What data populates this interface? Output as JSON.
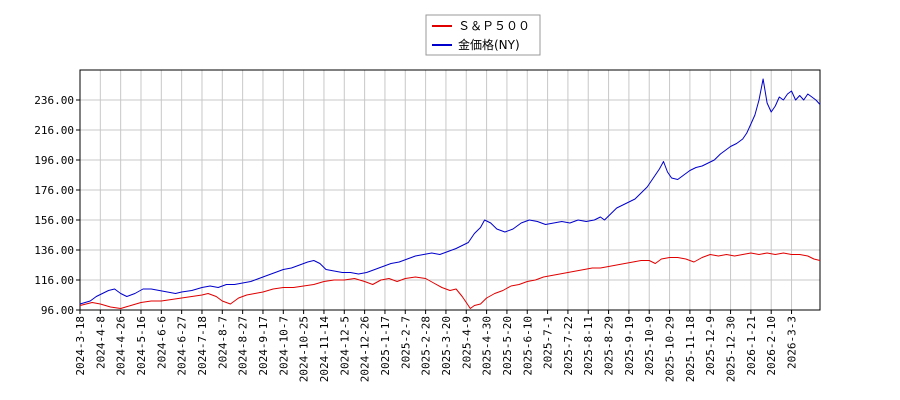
{
  "chart_data": {
    "type": "line",
    "legend_placement": "top-center",
    "grid": true,
    "ylim": [
      96,
      256
    ],
    "y_ticks": [
      96.0,
      116.0,
      136.0,
      156.0,
      176.0,
      196.0,
      216.0,
      236.0
    ],
    "y_tick_labels": [
      "96.00",
      "116.00",
      "136.00",
      "156.00",
      "176.00",
      "196.00",
      "216.00",
      "236.00"
    ],
    "x_tick_labels": [
      "2024-3-18",
      "2024-4-8",
      "2024-4-26",
      "2024-5-16",
      "2024-6-6",
      "2024-6-27",
      "2024-7-18",
      "2024-8-7",
      "2024-8-27",
      "2024-9-17",
      "2024-10-7",
      "2024-10-25",
      "2024-11-14",
      "2024-12-5",
      "2024-12-26",
      "2025-1-17",
      "2025-2-7",
      "2025-2-28",
      "2025-3-20",
      "2025-4-9",
      "2025-4-30",
      "2025-5-20",
      "2025-6-10",
      "2025-7-1",
      "2025-7-22",
      "2025-8-11",
      "2025-8-29",
      "2025-9-19",
      "2025-10-9",
      "2025-10-29",
      "2025-11-18",
      "2025-12-9",
      "2025-12-30",
      "2026-1-21",
      "2026-2-10",
      "2026-3-3"
    ],
    "x_range_tick_index": [
      0,
      36.4
    ],
    "series": [
      {
        "name": "Ｓ＆Ｐ５００",
        "color": "#e00000",
        "points": [
          [
            0,
            99
          ],
          [
            0.6,
            101
          ],
          [
            1,
            100
          ],
          [
            1.5,
            98
          ],
          [
            2,
            97
          ],
          [
            2.5,
            99
          ],
          [
            3,
            101
          ],
          [
            3.5,
            102
          ],
          [
            4,
            102
          ],
          [
            4.5,
            103
          ],
          [
            5,
            104
          ],
          [
            5.5,
            105
          ],
          [
            6,
            106
          ],
          [
            6.3,
            107
          ],
          [
            6.7,
            105
          ],
          [
            7,
            102
          ],
          [
            7.4,
            100
          ],
          [
            7.8,
            104
          ],
          [
            8.2,
            106
          ],
          [
            8.6,
            107
          ],
          [
            9,
            108
          ],
          [
            9.5,
            110
          ],
          [
            10,
            111
          ],
          [
            10.5,
            111
          ],
          [
            11,
            112
          ],
          [
            11.5,
            113
          ],
          [
            12,
            115
          ],
          [
            12.5,
            116
          ],
          [
            13,
            116
          ],
          [
            13.5,
            117
          ],
          [
            14,
            115
          ],
          [
            14.4,
            113
          ],
          [
            14.8,
            116
          ],
          [
            15.2,
            117
          ],
          [
            15.6,
            115
          ],
          [
            16,
            117
          ],
          [
            16.5,
            118
          ],
          [
            17,
            117
          ],
          [
            17.4,
            114
          ],
          [
            17.8,
            111
          ],
          [
            18.2,
            109
          ],
          [
            18.5,
            110
          ],
          [
            18.8,
            105
          ],
          [
            19,
            101
          ],
          [
            19.2,
            97
          ],
          [
            19.4,
            99
          ],
          [
            19.7,
            100
          ],
          [
            20,
            104
          ],
          [
            20.4,
            107
          ],
          [
            20.8,
            109
          ],
          [
            21.2,
            112
          ],
          [
            21.6,
            113
          ],
          [
            22,
            115
          ],
          [
            22.4,
            116
          ],
          [
            22.8,
            118
          ],
          [
            23.2,
            119
          ],
          [
            23.6,
            120
          ],
          [
            24,
            121
          ],
          [
            24.4,
            122
          ],
          [
            24.8,
            123
          ],
          [
            25.2,
            124
          ],
          [
            25.6,
            124
          ],
          [
            26,
            125
          ],
          [
            26.4,
            126
          ],
          [
            26.8,
            127
          ],
          [
            27.2,
            128
          ],
          [
            27.6,
            129
          ],
          [
            28,
            129
          ],
          [
            28.3,
            127
          ],
          [
            28.6,
            130
          ],
          [
            29,
            131
          ],
          [
            29.4,
            131
          ],
          [
            29.8,
            130
          ],
          [
            30.2,
            128
          ],
          [
            30.6,
            131
          ],
          [
            31,
            133
          ],
          [
            31.4,
            132
          ],
          [
            31.8,
            133
          ],
          [
            32.2,
            132
          ],
          [
            32.6,
            133
          ],
          [
            33,
            134
          ],
          [
            33.4,
            133
          ],
          [
            33.8,
            134
          ],
          [
            34.2,
            133
          ],
          [
            34.6,
            134
          ],
          [
            35,
            133
          ],
          [
            35.4,
            133
          ],
          [
            35.8,
            132
          ],
          [
            36.1,
            130
          ],
          [
            36.4,
            129
          ]
        ]
      },
      {
        "name": "金価格(NY)",
        "color": "#0000cc",
        "points": [
          [
            0,
            100
          ],
          [
            0.5,
            102
          ],
          [
            0.8,
            105
          ],
          [
            1.1,
            107
          ],
          [
            1.4,
            109
          ],
          [
            1.7,
            110
          ],
          [
            2,
            107
          ],
          [
            2.3,
            105
          ],
          [
            2.7,
            107
          ],
          [
            3.1,
            110
          ],
          [
            3.5,
            110
          ],
          [
            3.9,
            109
          ],
          [
            4.3,
            108
          ],
          [
            4.7,
            107
          ],
          [
            5,
            108
          ],
          [
            5.5,
            109
          ],
          [
            6,
            111
          ],
          [
            6.4,
            112
          ],
          [
            6.8,
            111
          ],
          [
            7.2,
            113
          ],
          [
            7.6,
            113
          ],
          [
            8,
            114
          ],
          [
            8.4,
            115
          ],
          [
            8.8,
            117
          ],
          [
            9.2,
            119
          ],
          [
            9.6,
            121
          ],
          [
            10,
            123
          ],
          [
            10.4,
            124
          ],
          [
            10.8,
            126
          ],
          [
            11.2,
            128
          ],
          [
            11.5,
            129
          ],
          [
            11.8,
            127
          ],
          [
            12.1,
            123
          ],
          [
            12.5,
            122
          ],
          [
            12.9,
            121
          ],
          [
            13.3,
            121
          ],
          [
            13.7,
            120
          ],
          [
            14.1,
            121
          ],
          [
            14.5,
            123
          ],
          [
            14.9,
            125
          ],
          [
            15.3,
            127
          ],
          [
            15.7,
            128
          ],
          [
            16.1,
            130
          ],
          [
            16.5,
            132
          ],
          [
            16.9,
            133
          ],
          [
            17.3,
            134
          ],
          [
            17.7,
            133
          ],
          [
            18.1,
            135
          ],
          [
            18.5,
            137
          ],
          [
            18.8,
            139
          ],
          [
            19.1,
            141
          ],
          [
            19.4,
            147
          ],
          [
            19.7,
            151
          ],
          [
            19.9,
            156
          ],
          [
            20.2,
            154
          ],
          [
            20.5,
            150
          ],
          [
            20.9,
            148
          ],
          [
            21.3,
            150
          ],
          [
            21.7,
            154
          ],
          [
            22.1,
            156
          ],
          [
            22.5,
            155
          ],
          [
            22.9,
            153
          ],
          [
            23.3,
            154
          ],
          [
            23.7,
            155
          ],
          [
            24.1,
            154
          ],
          [
            24.5,
            156
          ],
          [
            24.9,
            155
          ],
          [
            25.3,
            156
          ],
          [
            25.6,
            158
          ],
          [
            25.8,
            156
          ],
          [
            26.1,
            160
          ],
          [
            26.4,
            164
          ],
          [
            26.7,
            166
          ],
          [
            27,
            168
          ],
          [
            27.3,
            170
          ],
          [
            27.6,
            174
          ],
          [
            27.9,
            178
          ],
          [
            28.2,
            184
          ],
          [
            28.5,
            190
          ],
          [
            28.7,
            195
          ],
          [
            28.9,
            188
          ],
          [
            29.1,
            184
          ],
          [
            29.4,
            183
          ],
          [
            29.7,
            186
          ],
          [
            30,
            189
          ],
          [
            30.3,
            191
          ],
          [
            30.6,
            192
          ],
          [
            30.9,
            194
          ],
          [
            31.2,
            196
          ],
          [
            31.5,
            200
          ],
          [
            31.8,
            203
          ],
          [
            32,
            205
          ],
          [
            32.3,
            207
          ],
          [
            32.6,
            210
          ],
          [
            32.8,
            214
          ],
          [
            33,
            220
          ],
          [
            33.2,
            226
          ],
          [
            33.4,
            236
          ],
          [
            33.6,
            250
          ],
          [
            33.8,
            234
          ],
          [
            34,
            228
          ],
          [
            34.2,
            232
          ],
          [
            34.4,
            238
          ],
          [
            34.6,
            236
          ],
          [
            34.8,
            240
          ],
          [
            35,
            242
          ],
          [
            35.2,
            236
          ],
          [
            35.4,
            239
          ],
          [
            35.6,
            236
          ],
          [
            35.8,
            240
          ],
          [
            36,
            238
          ],
          [
            36.2,
            236
          ],
          [
            36.4,
            233
          ]
        ]
      }
    ]
  }
}
